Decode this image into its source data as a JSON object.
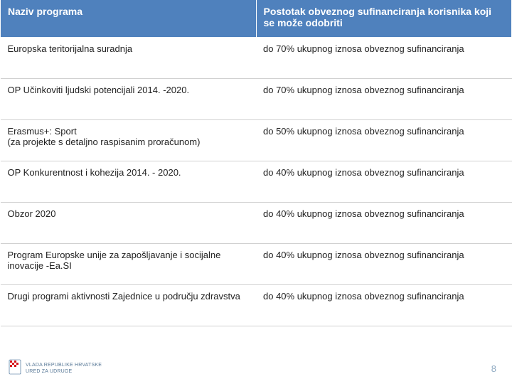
{
  "table": {
    "header": {
      "col1": "Naziv programa",
      "col2": "Postotak obveznog sufinanciranja korisnika koji se može odobriti"
    },
    "rows": [
      {
        "program": "Europska teritorijalna suradnja",
        "percent": "do 70% ukupnog iznosa obveznog sufinanciranja"
      },
      {
        "program": "OP Učinkoviti ljudski potencijali 2014. -2020.",
        "percent": "do 70% ukupnog iznosa obveznog sufinanciranja"
      },
      {
        "program": "Erasmus+: Sport\n(za projekte s detaljno raspisanim proračunom)",
        "percent": "do 50% ukupnog iznosa obveznog sufinanciranja"
      },
      {
        "program": "OP Konkurentnost i kohezija 2014. - 2020.",
        "percent": "do 40% ukupnog iznosa obveznog sufinanciranja"
      },
      {
        "program": "Obzor 2020",
        "percent": "do 40% ukupnog iznosa obveznog sufinanciranja"
      },
      {
        "program": "Program Europske unije za zapošljavanje i socijalne inovacije -Ea.SI",
        "percent": "do 40% ukupnog iznosa obveznog sufinanciranja"
      },
      {
        "program": "Drugi programi aktivnosti Zajednice u području zdravstva",
        "percent": "do 40% ukupnog iznosa obveznog sufinanciranja"
      }
    ]
  },
  "footer": {
    "logo_text": "VLADA REPUBLIKE HRVATSKE\nURED ZA UDRUGE",
    "page_number": "8"
  },
  "colors": {
    "header_bg": "#4f81bd",
    "header_fg": "#ffffff",
    "row_border": "#d0d0d0",
    "page_num": "#8faac2",
    "logo_text": "#5a7a98"
  }
}
